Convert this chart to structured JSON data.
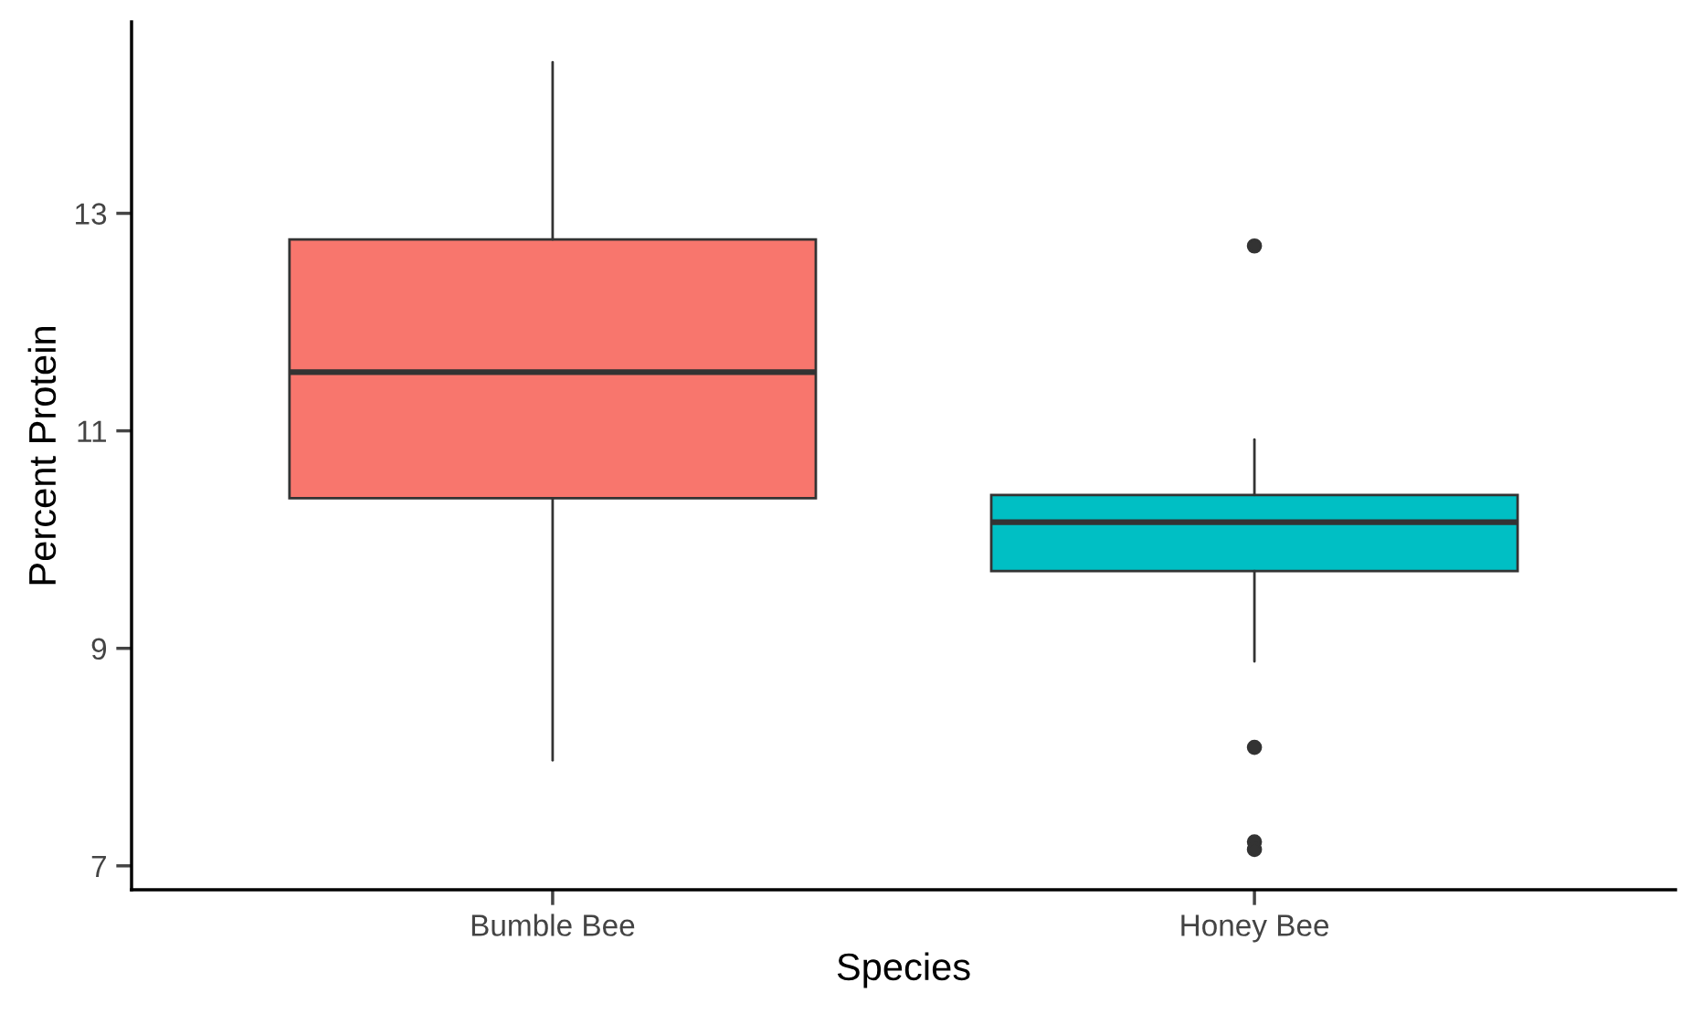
{
  "chart_data": {
    "type": "box",
    "xlabel": "Species",
    "ylabel": "Percent Protein",
    "categories": [
      "Bumble Bee",
      "Honey Bee"
    ],
    "colors": [
      "#f8766d",
      "#00bfc4"
    ],
    "boxes": [
      {
        "low": 7.97,
        "q1": 10.38,
        "median": 11.54,
        "q3": 12.76,
        "high": 14.39
      },
      {
        "low": 8.88,
        "q1": 9.71,
        "median": 10.16,
        "q3": 10.41,
        "high": 10.92,
        "outliers": [
          12.7,
          8.09,
          7.22,
          7.15
        ]
      }
    ],
    "ylim": [
      6.78,
      14.76
    ],
    "yticks": [
      7,
      9,
      11,
      13
    ],
    "grid": false
  }
}
